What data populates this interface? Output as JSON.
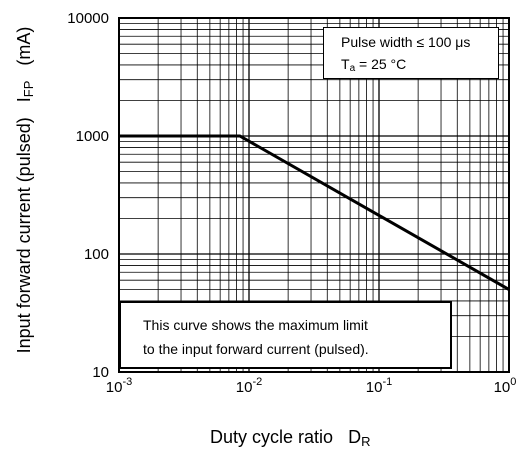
{
  "chart_data": {
    "type": "line",
    "scale": "log-log",
    "xlabel": "Duty cycle ratio",
    "xlabel_symbol": {
      "main": "D",
      "sub": "R"
    },
    "ylabel": "Input forward current (pulsed)",
    "ylabel_symbol": {
      "main": "I",
      "sub": "FP"
    },
    "ylabel_unit": "(mA)",
    "xlim": [
      0.001,
      1
    ],
    "ylim": [
      10,
      10000
    ],
    "x_ticks": [
      {
        "value": 0.001,
        "base": "10",
        "exp": "-3"
      },
      {
        "value": 0.01,
        "base": "10",
        "exp": "-2"
      },
      {
        "value": 0.1,
        "base": "10",
        "exp": "-1"
      },
      {
        "value": 1,
        "base": "10",
        "exp": "0"
      }
    ],
    "y_ticks": [
      {
        "value": 10,
        "label": "10"
      },
      {
        "value": 100,
        "label": "100"
      },
      {
        "value": 1000,
        "label": "1000"
      },
      {
        "value": 10000,
        "label": "10000"
      }
    ],
    "grid": true,
    "series": [
      {
        "x": [
          0.001,
          0.0085,
          1
        ],
        "y": [
          1000,
          1000,
          50
        ]
      }
    ],
    "annotations": {
      "conditions": [
        "Pulse width ≤ 100 μs",
        {
          "main": "T",
          "sub": "a",
          "rest": " = 25 °C"
        }
      ],
      "note": [
        "This curve shows the maximum limit",
        "to the input forward current (pulsed)."
      ]
    }
  }
}
